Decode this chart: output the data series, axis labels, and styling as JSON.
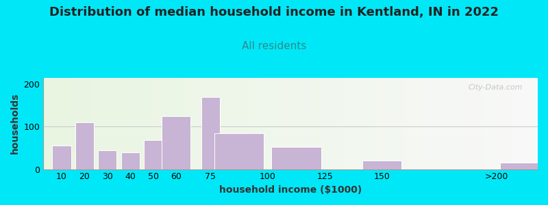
{
  "title": "Distribution of median household income in Kentland, IN in 2022",
  "subtitle": "All residents",
  "xlabel": "household income ($1000)",
  "ylabel": "households",
  "bar_color": "#c8b4d4",
  "bar_edge_color": "#ffffff",
  "background_outer": "#00e8f8",
  "title_color": "#222222",
  "subtitle_color": "#2a8a8a",
  "watermark_text": "City-Data.com",
  "yticks": [
    0,
    100,
    200
  ],
  "ylim": [
    0,
    215
  ],
  "xlim_left": 2,
  "xlim_right": 218,
  "title_fontsize": 13,
  "subtitle_fontsize": 11,
  "axis_label_fontsize": 10,
  "tick_fontsize": 9,
  "bar_centers": [
    10,
    20,
    30,
    40,
    50,
    60,
    75,
    87.5,
    112.5,
    150,
    210
  ],
  "bar_heights": [
    55,
    110,
    45,
    40,
    68,
    125,
    170,
    85,
    52,
    20,
    15
  ],
  "bar_widths": [
    9,
    9,
    9,
    9,
    9,
    14,
    9,
    24,
    24,
    19,
    19
  ],
  "xtick_positions": [
    10,
    20,
    30,
    40,
    50,
    60,
    75,
    100,
    125,
    150,
    200
  ],
  "xtick_labels": [
    "10",
    "20",
    "30",
    "40",
    "50",
    "60",
    "75",
    "100",
    "125",
    "150",
    ">200"
  ],
  "gridline_y": 100,
  "gridline_color": "#cccccc"
}
